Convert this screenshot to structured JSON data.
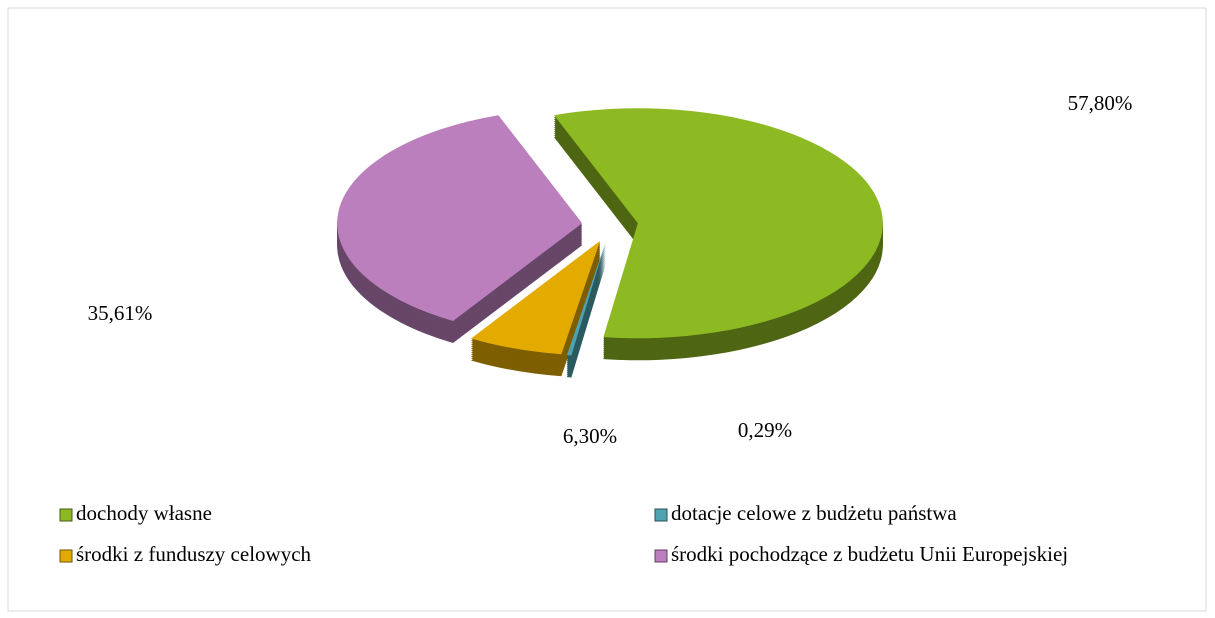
{
  "chart_data": {
    "type": "pie",
    "categories": [
      "dochody własne",
      "dotacje celowe z budżetu państwa",
      "środki z funduszy celowych",
      "środki pochodzące z budżetu Unii Europejskiej"
    ],
    "values": [
      57.8,
      0.29,
      6.3,
      35.61
    ],
    "value_labels": [
      "57,80%",
      "0,29%",
      "6,30%",
      "35,61%"
    ],
    "colors": [
      "#8dba22",
      "#4fa3b0",
      "#e3ab00",
      "#bb7fbd"
    ],
    "legend": "bottom"
  }
}
